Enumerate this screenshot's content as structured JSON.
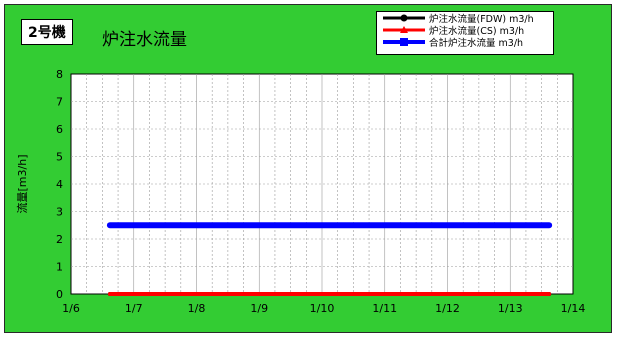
{
  "header": {
    "unit_badge": "2号機",
    "title": "炉注水流量"
  },
  "chart_data": {
    "type": "line",
    "title": "炉注水流量",
    "ylabel": "流量[m3/h]",
    "xlabel": "",
    "ylim": [
      0,
      8
    ],
    "yticks": [
      0,
      1,
      2,
      3,
      4,
      5,
      6,
      7,
      8
    ],
    "xticks": [
      "1/6",
      "1/7",
      "1/8",
      "1/9",
      "1/10",
      "1/11",
      "1/12",
      "1/13",
      "1/14"
    ],
    "x_range": [
      "1/6",
      "1/14"
    ],
    "grid": true,
    "legend_position": "top-right",
    "series": [
      {
        "name": "炉注水流量(FDW) m3/h",
        "color": "#000000",
        "marker": "diamond",
        "x_start": 0.62,
        "x_end": 7.62,
        "values": [
          0,
          0
        ]
      },
      {
        "name": "炉注水流量(CS) m3/h",
        "color": "#ff0000",
        "marker": "triangle",
        "x_start": 0.62,
        "x_end": 7.62,
        "values": [
          0,
          0
        ]
      },
      {
        "name": "合計炉注水流量 m3/h",
        "color": "#0000ff",
        "marker": "square",
        "x_start": 0.62,
        "x_end": 7.62,
        "values": [
          2.5,
          2.5
        ]
      }
    ]
  }
}
